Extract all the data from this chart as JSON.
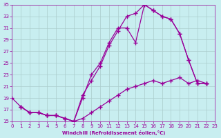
{
  "xlabel": "Windchill (Refroidissement éolien,°C)",
  "ylabel": "",
  "bg_color": "#c8eef0",
  "line_color": "#990099",
  "grid_color": "#aacccc",
  "xlim": [
    0,
    23
  ],
  "ylim": [
    15,
    35
  ],
  "xticks": [
    0,
    1,
    2,
    3,
    4,
    5,
    6,
    7,
    8,
    9,
    10,
    11,
    12,
    13,
    14,
    15,
    16,
    17,
    18,
    19,
    20,
    21,
    22,
    23
  ],
  "yticks": [
    15,
    17,
    19,
    21,
    23,
    25,
    27,
    29,
    31,
    33,
    35
  ],
  "line1_x": [
    0,
    1,
    2,
    3,
    4,
    5,
    6,
    7,
    8,
    9,
    10,
    11,
    12,
    13,
    14,
    15,
    16,
    17,
    18,
    19,
    20,
    21,
    22
  ],
  "line1_y": [
    19,
    17.5,
    16.5,
    16.5,
    16,
    16,
    15.5,
    15,
    19,
    23,
    25,
    28.5,
    31,
    31,
    28.5,
    35,
    34,
    33,
    32.5,
    30,
    25.5,
    21.5,
    21.5
  ],
  "line2_x": [
    1,
    2,
    3,
    4,
    5,
    6,
    7,
    8,
    9,
    10,
    11,
    12,
    13,
    14,
    15,
    16,
    17,
    18,
    19,
    20,
    21,
    22
  ],
  "line2_y": [
    17.5,
    16.5,
    16.5,
    16,
    16,
    15.5,
    15,
    19.5,
    22,
    24.5,
    28,
    30.5,
    33,
    33.5,
    35,
    34,
    33,
    32.5,
    30,
    25.5,
    21.5,
    21.5
  ],
  "line3_x": [
    1,
    2,
    3,
    4,
    5,
    6,
    7,
    8,
    9,
    10,
    11,
    12,
    13,
    14,
    15,
    16,
    17,
    18,
    19,
    20,
    21,
    22
  ],
  "line3_y": [
    17.5,
    16.5,
    16.5,
    16,
    16,
    15.5,
    15,
    15.5,
    16.5,
    17.5,
    18.5,
    19.5,
    20.5,
    21,
    21.5,
    22,
    21.5,
    22,
    22.5,
    21.5,
    22,
    21.5
  ]
}
